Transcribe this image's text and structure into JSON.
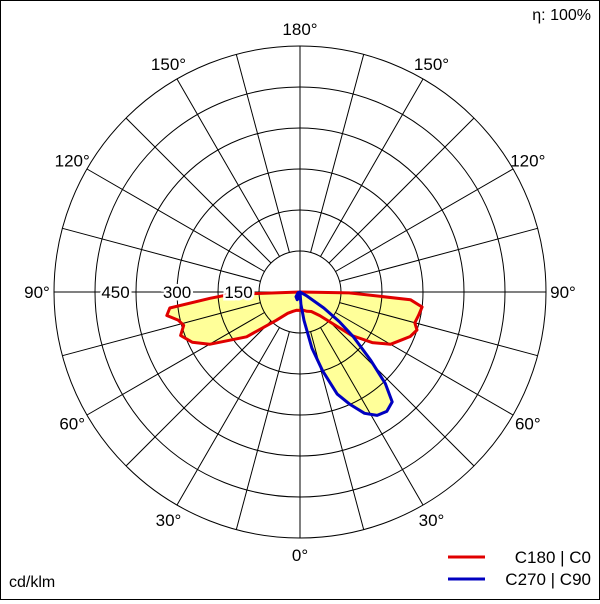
{
  "efficiency_label": "η: 100%",
  "unit_label": "cd/klm",
  "chart_data": {
    "type": "polar",
    "radial_unit": "cd/klm",
    "radial_ticks": [
      150,
      300,
      450
    ],
    "rmax": 600,
    "angle_labels": [
      "0°",
      "30°",
      "30°",
      "60°",
      "60°",
      "90°",
      "90°",
      "120°",
      "120°",
      "150°",
      "150°",
      "180°"
    ],
    "radial_tick_labels": [
      "150",
      "300",
      "450"
    ],
    "grid": true,
    "legend_position": "bottom-right",
    "series": [
      {
        "name": "C180 | C0",
        "color": "#e00000",
        "points": [
          [
            0,
            45
          ],
          [
            10,
            45
          ],
          [
            20,
            50
          ],
          [
            30,
            55
          ],
          [
            40,
            75
          ],
          [
            50,
            165
          ],
          [
            55,
            215
          ],
          [
            60,
            255
          ],
          [
            65,
            275
          ],
          [
            68,
            290
          ],
          [
            72,
            300
          ],
          [
            75,
            290
          ],
          [
            79,
            295
          ],
          [
            83,
            300
          ],
          [
            86,
            270
          ],
          [
            89,
            120
          ],
          [
            90,
            0
          ],
          [
            -90,
            0
          ],
          [
            -88,
            170
          ],
          [
            -86,
            220
          ],
          [
            -83,
            320
          ],
          [
            -80,
            330
          ],
          [
            -77,
            305
          ],
          [
            -74,
            295
          ],
          [
            -70,
            310
          ],
          [
            -65,
            290
          ],
          [
            -60,
            255
          ],
          [
            -50,
            170
          ],
          [
            -40,
            90
          ],
          [
            -30,
            60
          ],
          [
            -20,
            50
          ],
          [
            -10,
            45
          ]
        ]
      },
      {
        "name": "C270 | C90",
        "color": "#0000c0",
        "points": [
          [
            0,
            0
          ],
          [
            4,
            30
          ],
          [
            8,
            70
          ],
          [
            12,
            140
          ],
          [
            16,
            200
          ],
          [
            20,
            265
          ],
          [
            24,
            300
          ],
          [
            28,
            335
          ],
          [
            32,
            355
          ],
          [
            36,
            360
          ],
          [
            40,
            350
          ],
          [
            43,
            305
          ],
          [
            46,
            240
          ],
          [
            50,
            170
          ],
          [
            53,
            120
          ],
          [
            56,
            70
          ],
          [
            60,
            20
          ],
          [
            64,
            0
          ],
          [
            -85,
            0
          ],
          [
            -70,
            5
          ],
          [
            -40,
            15
          ],
          [
            -20,
            20
          ],
          [
            -10,
            15
          ],
          [
            -5,
            5
          ]
        ]
      }
    ]
  }
}
